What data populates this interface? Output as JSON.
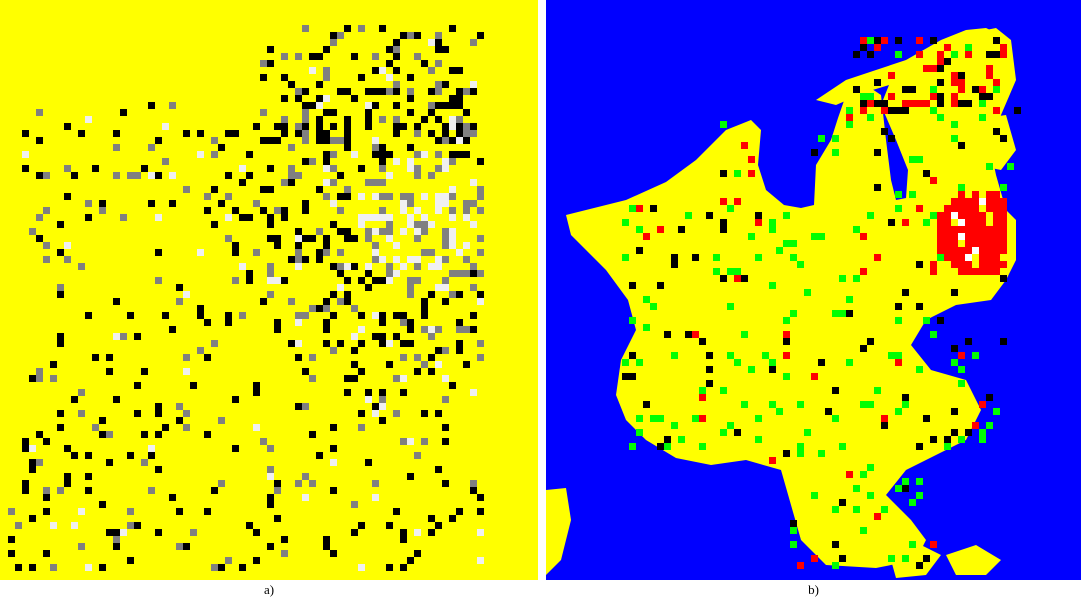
{
  "panels": [
    {
      "caption": "a)",
      "colors": {
        "background": "#ffff00",
        "pixels_dark": "#000000",
        "pixels_mid": "#808080",
        "pixels_light": "#f0f0f0"
      }
    },
    {
      "caption": "b)",
      "colors": {
        "water": "#0000ff",
        "land": "#ffff00",
        "class_red": "#ff0000",
        "class_green": "#00ff00",
        "class_black": "#000000",
        "class_white": "#ffffff"
      }
    }
  ]
}
